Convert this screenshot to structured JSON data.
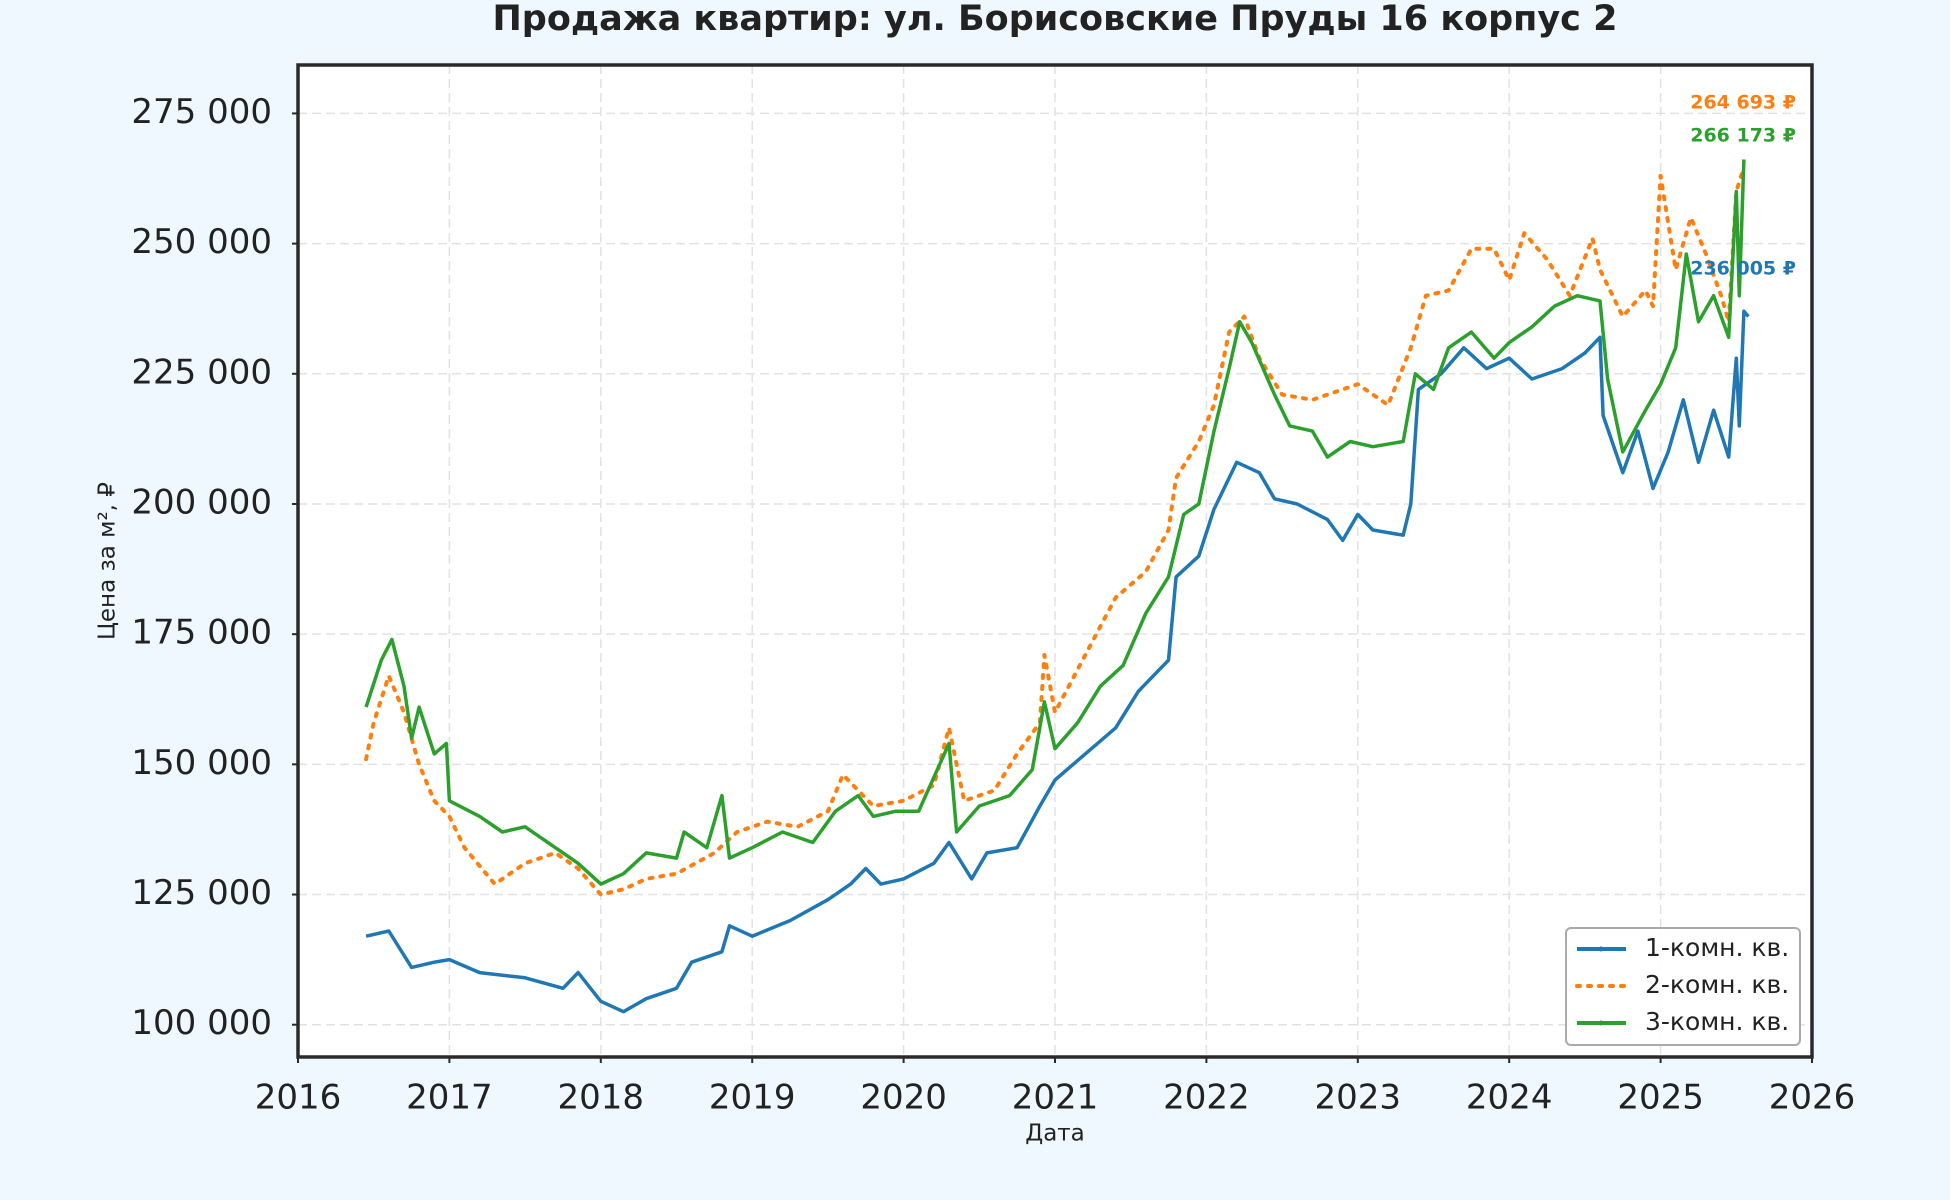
{
  "chart_data": {
    "type": "line",
    "title": "Продажа квартир: ул. Борисовские Пруды 16 корпус 2",
    "x_label": "Дата",
    "y_label": "Цена за м², ₽",
    "xlim": [
      2016,
      2026
    ],
    "xticks": [
      2016,
      2017,
      2018,
      2019,
      2020,
      2021,
      2022,
      2023,
      2024,
      2025,
      2026
    ],
    "ylim": [
      93800,
      284300
    ],
    "yticks": [
      {
        "value": 100000,
        "label": "100 000"
      },
      {
        "value": 125000,
        "label": "125 000"
      },
      {
        "value": 150000,
        "label": "150 000"
      },
      {
        "value": 175000,
        "label": "175 000"
      },
      {
        "value": 200000,
        "label": "200 000"
      },
      {
        "value": 225000,
        "label": "225 000"
      },
      {
        "value": 250000,
        "label": "250 000"
      },
      {
        "value": 275000,
        "label": "275 000"
      }
    ],
    "grid": true,
    "legend": "lower right",
    "series": [
      {
        "name": "1-комн. кв.",
        "color": "#1f77b4",
        "style": "solid",
        "x": [
          2016.45,
          2016.6,
          2016.75,
          2016.9,
          2017.0,
          2017.2,
          2017.5,
          2017.75,
          2017.85,
          2018.0,
          2018.15,
          2018.3,
          2018.5,
          2018.6,
          2018.8,
          2018.85,
          2019.0,
          2019.25,
          2019.5,
          2019.65,
          2019.75,
          2019.85,
          2020.0,
          2020.2,
          2020.3,
          2020.45,
          2020.55,
          2020.75,
          2020.9,
          2021.0,
          2021.2,
          2021.4,
          2021.55,
          2021.75,
          2021.8,
          2021.95,
          2022.05,
          2022.2,
          2022.35,
          2022.45,
          2022.6,
          2022.8,
          2022.9,
          2023.0,
          2023.1,
          2023.3,
          2023.35,
          2023.4,
          2023.55,
          2023.7,
          2023.85,
          2024.0,
          2024.15,
          2024.35,
          2024.5,
          2024.6,
          2024.62,
          2024.75,
          2024.85,
          2024.95,
          2025.05,
          2025.15,
          2025.25,
          2025.35,
          2025.45,
          2025.5,
          2025.52,
          2025.55,
          2025.58
        ],
        "values": [
          117000,
          118000,
          111000,
          112000,
          112500,
          110000,
          109000,
          107000,
          110000,
          104500,
          102500,
          105000,
          107000,
          112000,
          114000,
          119000,
          117000,
          120000,
          124000,
          127000,
          130000,
          127000,
          128000,
          131000,
          135000,
          128000,
          133000,
          134000,
          142000,
          147000,
          152000,
          157000,
          164000,
          170000,
          186000,
          190000,
          199000,
          208000,
          206000,
          201000,
          200000,
          197000,
          193000,
          198000,
          195000,
          194000,
          200000,
          222000,
          225000,
          230000,
          226000,
          228000,
          224000,
          226000,
          229000,
          232000,
          217000,
          206000,
          214000,
          203000,
          210000,
          220000,
          208000,
          218000,
          209000,
          228000,
          215000,
          237000,
          236005
        ]
      },
      {
        "name": "2-комн. кв.",
        "color": "#ff7f0e",
        "style": "dotted",
        "x": [
          2016.45,
          2016.5,
          2016.6,
          2016.7,
          2016.8,
          2016.9,
          2017.0,
          2017.1,
          2017.3,
          2017.5,
          2017.7,
          2017.85,
          2018.0,
          2018.15,
          2018.3,
          2018.5,
          2018.75,
          2018.9,
          2019.1,
          2019.3,
          2019.5,
          2019.6,
          2019.8,
          2020.0,
          2020.2,
          2020.3,
          2020.4,
          2020.6,
          2020.75,
          2020.9,
          2020.93,
          2021.0,
          2021.2,
          2021.4,
          2021.6,
          2021.75,
          2021.8,
          2021.95,
          2022.05,
          2022.15,
          2022.25,
          2022.35,
          2022.5,
          2022.7,
          2022.9,
          2023.0,
          2023.2,
          2023.35,
          2023.45,
          2023.6,
          2023.75,
          2023.9,
          2024.0,
          2024.1,
          2024.25,
          2024.4,
          2024.55,
          2024.6,
          2024.75,
          2024.9,
          2024.95,
          2025.0,
          2025.1,
          2025.2,
          2025.3,
          2025.4,
          2025.45,
          2025.5,
          2025.55
        ],
        "values": [
          151000,
          158000,
          167000,
          160000,
          150000,
          143000,
          140000,
          134000,
          127000,
          131000,
          133000,
          130000,
          125000,
          126000,
          128000,
          129000,
          133000,
          137000,
          139000,
          138000,
          141000,
          148000,
          142000,
          143000,
          146000,
          157000,
          143000,
          145000,
          152000,
          158000,
          171000,
          160000,
          171000,
          182000,
          187000,
          195000,
          205000,
          212000,
          219000,
          233000,
          236000,
          228000,
          221000,
          220000,
          222000,
          223000,
          219000,
          230000,
          240000,
          241000,
          249000,
          249000,
          243000,
          252000,
          247000,
          240000,
          251000,
          245000,
          236000,
          241000,
          238000,
          263000,
          245000,
          255000,
          248000,
          240000,
          235000,
          260000,
          264693
        ]
      },
      {
        "name": "3-комн. кв.",
        "color": "#2ca02c",
        "style": "solid",
        "x": [
          2016.45,
          2016.55,
          2016.62,
          2016.7,
          2016.75,
          2016.8,
          2016.9,
          2016.98,
          2017.0,
          2017.2,
          2017.35,
          2017.5,
          2017.7,
          2017.85,
          2018.0,
          2018.15,
          2018.3,
          2018.5,
          2018.55,
          2018.7,
          2018.8,
          2018.85,
          2019.0,
          2019.2,
          2019.4,
          2019.55,
          2019.7,
          2019.8,
          2019.95,
          2020.1,
          2020.3,
          2020.35,
          2020.5,
          2020.7,
          2020.85,
          2020.93,
          2021.0,
          2021.15,
          2021.3,
          2021.45,
          2021.6,
          2021.75,
          2021.85,
          2021.95,
          2022.05,
          2022.15,
          2022.22,
          2022.3,
          2022.45,
          2022.55,
          2022.7,
          2022.8,
          2022.95,
          2023.1,
          2023.3,
          2023.38,
          2023.5,
          2023.6,
          2023.75,
          2023.9,
          2024.0,
          2024.15,
          2024.3,
          2024.45,
          2024.6,
          2024.65,
          2024.75,
          2024.9,
          2025.0,
          2025.1,
          2025.17,
          2025.25,
          2025.35,
          2025.45,
          2025.5,
          2025.52,
          2025.55
        ],
        "values": [
          161000,
          170000,
          174000,
          165000,
          155000,
          161000,
          152000,
          154000,
          143000,
          140000,
          137000,
          138000,
          134000,
          131000,
          127000,
          129000,
          133000,
          132000,
          137000,
          134000,
          144000,
          132000,
          134000,
          137000,
          135000,
          141000,
          144000,
          140000,
          141000,
          141000,
          154000,
          137000,
          142000,
          144000,
          149000,
          162000,
          153000,
          158000,
          165000,
          169000,
          179000,
          186000,
          198000,
          200000,
          214000,
          226000,
          235000,
          231000,
          221000,
          215000,
          214000,
          209000,
          212000,
          211000,
          212000,
          225000,
          222000,
          230000,
          233000,
          228000,
          231000,
          234000,
          238000,
          240000,
          239000,
          224000,
          210000,
          218000,
          223000,
          230000,
          248000,
          235000,
          240000,
          232000,
          260000,
          240000,
          266173
        ]
      }
    ],
    "annotations": [
      {
        "text": "264 693 ₽",
        "color": "#ff7f0e"
      },
      {
        "text": "266 173 ₽",
        "color": "#2ca02c"
      },
      {
        "text": "236 005 ₽",
        "color": "#1f77b4"
      }
    ]
  }
}
